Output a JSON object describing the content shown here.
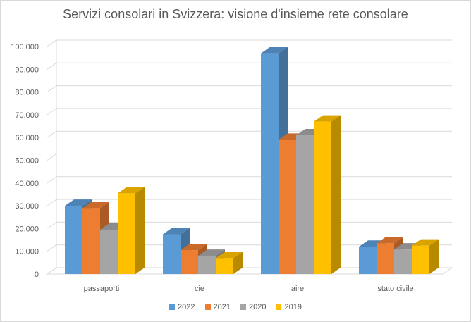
{
  "chart_data": {
    "type": "bar",
    "title": "Servizi consolari in Svizzera: visione d'insieme rete consolare",
    "xlabel": "",
    "ylabel": "",
    "categories": [
      "passaporti",
      "cie",
      "aire",
      "stato civile"
    ],
    "series": [
      {
        "name": "2022",
        "color": "#5b9bd5",
        "values": [
          30000,
          17500,
          97000,
          12000
        ]
      },
      {
        "name": "2021",
        "color": "#ed7d31",
        "values": [
          29000,
          10500,
          59000,
          13500
        ]
      },
      {
        "name": "2020",
        "color": "#a5a5a5",
        "values": [
          19500,
          8000,
          61000,
          10800
        ]
      },
      {
        "name": "2019",
        "color": "#ffc000",
        "values": [
          35500,
          7000,
          67000,
          12500
        ]
      }
    ],
    "ylim": [
      0,
      100000
    ],
    "yticks": [
      0,
      10000,
      20000,
      30000,
      40000,
      50000,
      60000,
      70000,
      80000,
      90000,
      100000
    ],
    "ytick_labels": [
      "0",
      "10.000",
      "20.000",
      "30.000",
      "40.000",
      "50.000",
      "60.000",
      "70.000",
      "80.000",
      "90.000",
      "100.000"
    ],
    "grid": true,
    "legend_position": "bottom",
    "style": "3d-column"
  }
}
